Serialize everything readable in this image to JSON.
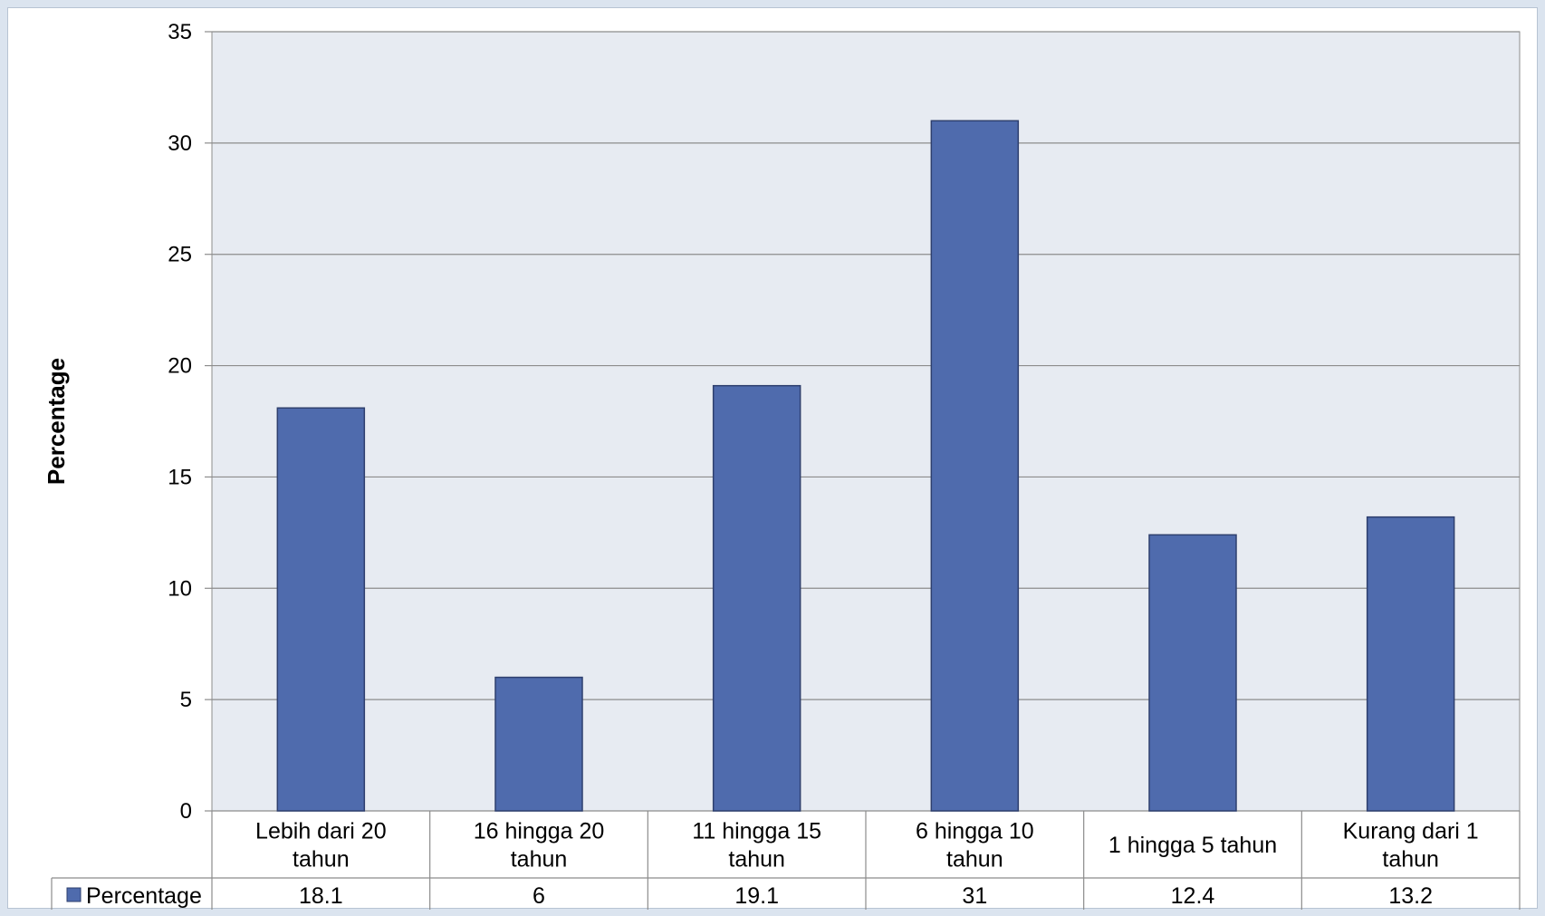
{
  "chart_data": {
    "type": "bar",
    "categories": [
      [
        "Lebih dari 20",
        "tahun"
      ],
      [
        "16 hingga 20",
        "tahun"
      ],
      [
        "11 hingga 15",
        "tahun"
      ],
      [
        "6 hingga 10",
        "tahun"
      ],
      [
        "1 hingga 5 tahun"
      ],
      [
        "Kurang dari 1",
        "tahun"
      ]
    ],
    "series": [
      {
        "name": "Percentage",
        "values": [
          18.1,
          6,
          19.1,
          31,
          12.4,
          13.2
        ],
        "color": "#4f6bad"
      }
    ],
    "ylabel": "Percentage",
    "xlabel": "",
    "ylim": [
      0,
      35
    ],
    "yticks": [
      0,
      5,
      10,
      15,
      20,
      25,
      30,
      35
    ],
    "grid": true,
    "data_table": true,
    "colors": {
      "plot_background": "#e7ebf2",
      "gridline": "#8c8c8c",
      "bar_edge": "#2e3f6e"
    }
  }
}
